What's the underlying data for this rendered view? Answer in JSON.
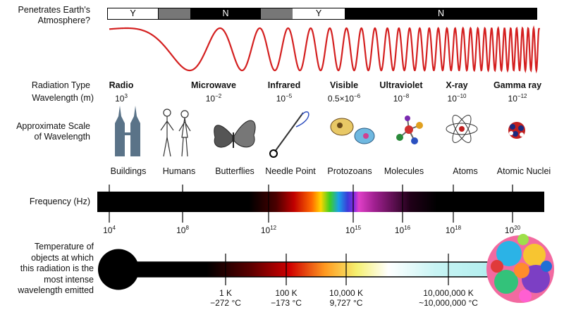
{
  "labels": {
    "atmosphere": [
      "Penetrates Earth's",
      "Atmosphere?"
    ],
    "radiation_type": "Radiation Type",
    "wavelength": "Wavelength (m)",
    "scale": [
      "Approximate Scale",
      "of Wavelength"
    ],
    "frequency": "Frequency (Hz)",
    "temperature": [
      "Temperature of",
      "objects at which",
      "this radiation is the",
      "most intense",
      "wavelength emitted"
    ]
  },
  "atmosphere_bar": [
    "Y",
    "N",
    "Y",
    "N"
  ],
  "radiation_types": [
    {
      "name": "Radio",
      "wl_base": "10",
      "wl_exp": "3"
    },
    {
      "name": "Microwave",
      "wl_base": "10",
      "wl_exp": "−2"
    },
    {
      "name": "Infrared",
      "wl_base": "10",
      "wl_exp": "−5"
    },
    {
      "name": "Visible",
      "wl_base": "0.5×10",
      "wl_exp": "−6"
    },
    {
      "name": "Ultraviolet",
      "wl_base": "10",
      "wl_exp": "−8"
    },
    {
      "name": "X-ray",
      "wl_base": "10",
      "wl_exp": "−10"
    },
    {
      "name": "Gamma ray",
      "wl_base": "10",
      "wl_exp": "−12"
    }
  ],
  "objects": [
    "Buildings",
    "Humans",
    "Butterflies",
    "Needle Point",
    "Protozoans",
    "Molecules",
    "Atoms",
    "Atomic Nuclei"
  ],
  "frequency_ticks": [
    {
      "base": "10",
      "exp": "4"
    },
    {
      "base": "10",
      "exp": "8"
    },
    {
      "base": "10",
      "exp": "12"
    },
    {
      "base": "10",
      "exp": "15"
    },
    {
      "base": "10",
      "exp": "16"
    },
    {
      "base": "10",
      "exp": "18"
    },
    {
      "base": "10",
      "exp": "20"
    }
  ],
  "temperatures": [
    {
      "k": "1 K",
      "c": "−272 °C"
    },
    {
      "k": "100 K",
      "c": "−173 °C"
    },
    {
      "k": "10,000 K",
      "c": "9,727 °C"
    },
    {
      "k": "10,000,000 K",
      "c": "~10,000,000 °C"
    }
  ],
  "colors": {
    "wave": "#d42020",
    "bar_black": "#000000",
    "bar_gray": "#777777",
    "thermo_cyan": "#a8ecec"
  }
}
